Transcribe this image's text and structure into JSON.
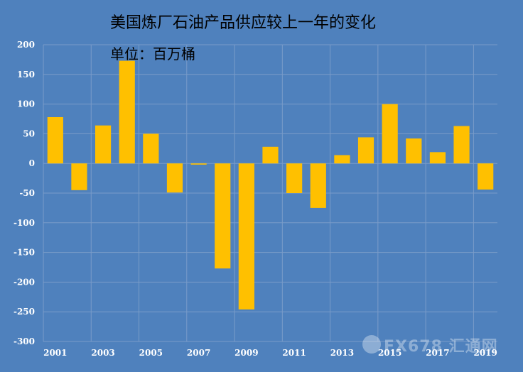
{
  "title": "美国炼厂石油产品供应较上一年的变化",
  "subtitle": "单位：百万桶",
  "watermark": "FX678 汇通网",
  "colors": {
    "background": "#4f81bd",
    "bar": "#ffc000",
    "grid": "#7a9cc9",
    "axis_text": "#ffffff"
  },
  "chart_data": {
    "type": "bar",
    "title": "美国炼厂石油产品供应较上一年的变化",
    "subtitle": "单位：百万桶",
    "categories": [
      "2001",
      "2002",
      "2003",
      "2004",
      "2005",
      "2006",
      "2007",
      "2008",
      "2009",
      "2010",
      "2011",
      "2012",
      "2013",
      "2014",
      "2015",
      "2016",
      "2017",
      "2018",
      "2019"
    ],
    "x_tick_labels": [
      "2001",
      "2003",
      "2005",
      "2007",
      "2009",
      "2011",
      "2013",
      "2015",
      "2017",
      "2019"
    ],
    "values": [
      78,
      -45,
      64,
      173,
      50,
      -49,
      -2,
      -177,
      -246,
      28,
      -50,
      -75,
      14,
      44,
      100,
      42,
      19,
      63,
      -44
    ],
    "ylim": [
      -300,
      200
    ],
    "yticks": [
      -300,
      -250,
      -200,
      -150,
      -100,
      -50,
      0,
      50,
      100,
      150,
      200
    ],
    "grid": true,
    "xlabel": "",
    "ylabel": ""
  }
}
